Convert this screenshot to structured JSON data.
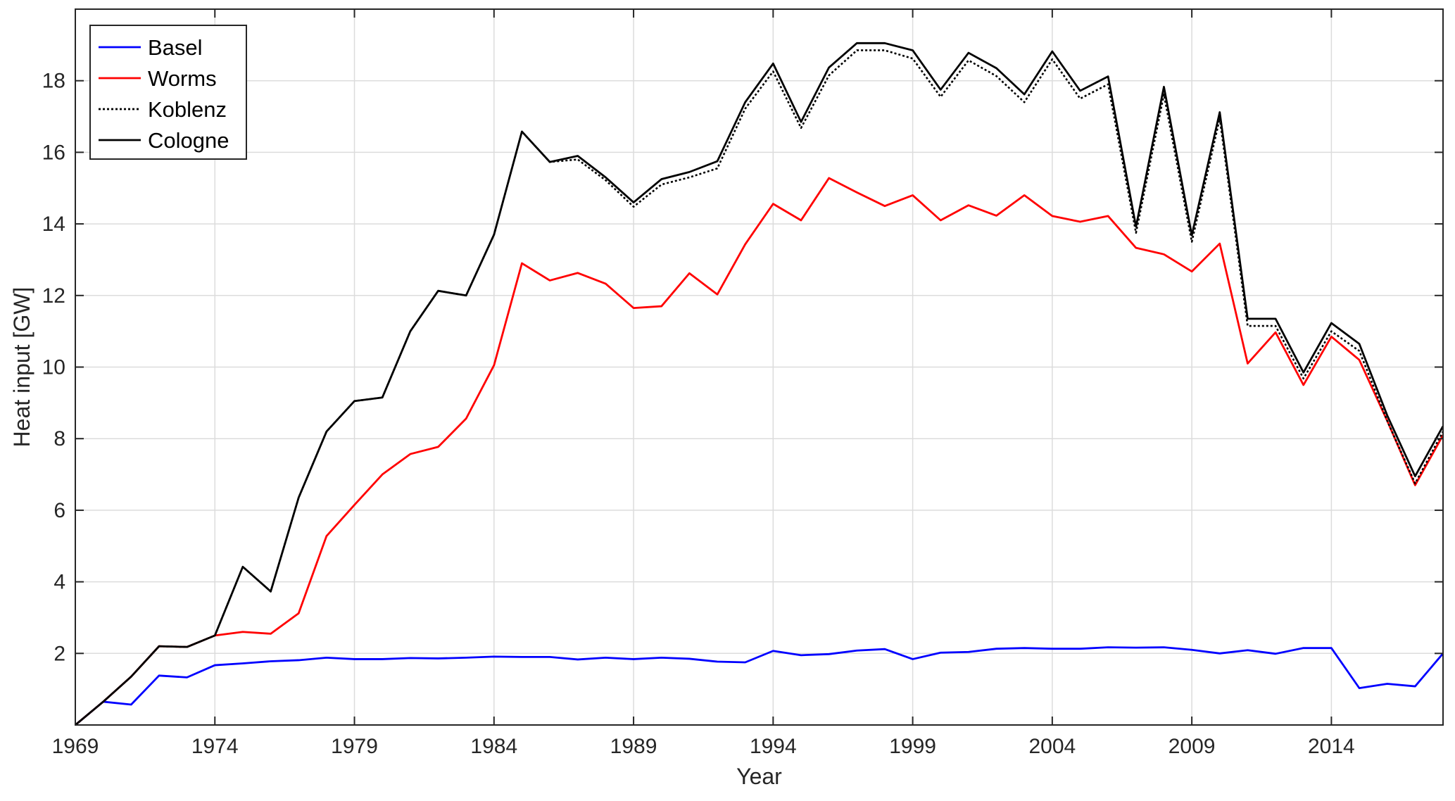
{
  "chart_data": {
    "type": "line",
    "xlabel": "Year",
    "ylabel": "Heat input [GW]",
    "xlim": [
      1969,
      2018
    ],
    "ylim": [
      0,
      20
    ],
    "xticks": [
      1969,
      1974,
      1979,
      1984,
      1989,
      1994,
      1999,
      2004,
      2009,
      2014
    ],
    "yticks": [
      2,
      4,
      6,
      8,
      10,
      12,
      14,
      16,
      18
    ],
    "grid": true,
    "legend_position": "top-left",
    "x": [
      1969,
      1970,
      1971,
      1972,
      1973,
      1974,
      1975,
      1976,
      1977,
      1978,
      1979,
      1980,
      1981,
      1982,
      1983,
      1984,
      1985,
      1986,
      1987,
      1988,
      1989,
      1990,
      1991,
      1992,
      1993,
      1994,
      1995,
      1996,
      1997,
      1998,
      1999,
      2000,
      2001,
      2002,
      2003,
      2004,
      2005,
      2006,
      2007,
      2008,
      2009,
      2010,
      2011,
      2012,
      2013,
      2014,
      2015,
      2016,
      2017,
      2018
    ],
    "series": [
      {
        "name": "Basel",
        "color": "#0000ff",
        "style": "solid",
        "values": [
          0.0,
          0.65,
          0.57,
          1.38,
          1.33,
          1.67,
          1.72,
          1.78,
          1.81,
          1.88,
          1.84,
          1.84,
          1.87,
          1.86,
          1.88,
          1.91,
          1.9,
          1.9,
          1.83,
          1.88,
          1.84,
          1.88,
          1.85,
          1.77,
          1.75,
          2.07,
          1.95,
          1.98,
          2.08,
          2.12,
          1.84,
          2.02,
          2.04,
          2.13,
          2.15,
          2.13,
          2.13,
          2.17,
          2.16,
          2.17,
          2.1,
          2.0,
          2.09,
          1.99,
          2.15,
          2.15,
          1.03,
          1.15,
          1.08,
          2.0
        ]
      },
      {
        "name": "Worms",
        "color": "#ff0000",
        "style": "solid",
        "values": [
          0.0,
          0.65,
          1.35,
          2.2,
          2.18,
          2.5,
          2.6,
          2.55,
          3.12,
          5.28,
          6.15,
          7.0,
          7.57,
          7.77,
          8.56,
          10.05,
          12.9,
          12.42,
          12.63,
          12.33,
          11.65,
          11.7,
          12.62,
          12.03,
          13.43,
          14.56,
          14.1,
          15.28,
          14.88,
          14.5,
          14.8,
          14.1,
          14.52,
          14.23,
          14.8,
          14.22,
          14.06,
          14.22,
          13.33,
          13.15,
          12.67,
          13.45,
          10.1,
          10.97,
          9.5,
          10.85,
          10.2,
          8.5,
          6.7,
          8.1
        ]
      },
      {
        "name": "Koblenz",
        "color": "#000000",
        "style": "dotted",
        "values": [
          0.0,
          0.65,
          1.35,
          2.2,
          2.18,
          2.5,
          4.42,
          3.73,
          6.35,
          8.2,
          9.05,
          9.15,
          11.0,
          12.13,
          12.0,
          13.7,
          16.58,
          15.73,
          15.8,
          15.22,
          14.48,
          15.1,
          15.3,
          15.55,
          17.22,
          18.26,
          16.68,
          18.15,
          18.85,
          18.85,
          18.62,
          17.55,
          18.57,
          18.13,
          17.4,
          18.6,
          17.5,
          17.9,
          13.75,
          17.62,
          13.5,
          16.95,
          11.15,
          11.15,
          9.68,
          11.0,
          10.45,
          8.5,
          6.75,
          8.2
        ]
      },
      {
        "name": "Cologne",
        "color": "#000000",
        "style": "solid",
        "values": [
          0.0,
          0.65,
          1.35,
          2.2,
          2.18,
          2.5,
          4.42,
          3.73,
          6.35,
          8.2,
          9.05,
          9.15,
          11.0,
          12.13,
          12.0,
          13.7,
          16.58,
          15.73,
          15.9,
          15.3,
          14.6,
          15.25,
          15.45,
          15.75,
          17.4,
          18.48,
          16.85,
          18.37,
          19.05,
          19.05,
          18.85,
          17.75,
          18.78,
          18.35,
          17.62,
          18.82,
          17.72,
          18.12,
          13.92,
          17.83,
          13.68,
          17.12,
          11.35,
          11.35,
          9.85,
          11.23,
          10.65,
          8.65,
          6.95,
          8.35
        ]
      }
    ]
  }
}
